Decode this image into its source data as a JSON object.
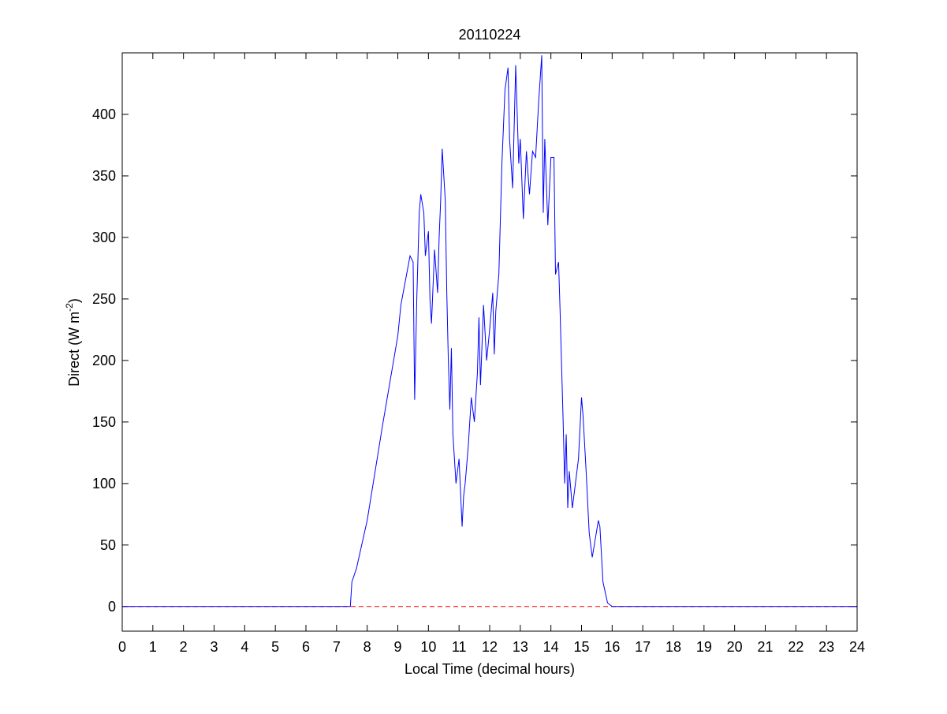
{
  "chart_data": {
    "type": "line",
    "title": "20110224",
    "xlabel": "Local Time (decimal hours)",
    "ylabel": [
      "Direct (W m",
      "-2",
      ")"
    ],
    "xlim": [
      0,
      24
    ],
    "xticks": [
      0,
      1,
      2,
      3,
      4,
      5,
      6,
      7,
      8,
      9,
      10,
      11,
      12,
      13,
      14,
      15,
      16,
      17,
      18,
      19,
      20,
      21,
      22,
      23,
      24
    ],
    "ylim": [
      -20,
      450
    ],
    "yticks": [
      0,
      50,
      100,
      150,
      200,
      250,
      300,
      350,
      400
    ],
    "reference_line": {
      "value": 0,
      "color": "#ff0000",
      "style": "dashed"
    },
    "x": [
      0,
      7.45,
      7.5,
      7.65,
      8.0,
      8.5,
      9.0,
      9.1,
      9.25,
      9.4,
      9.5,
      9.55,
      9.62,
      9.7,
      9.75,
      9.85,
      9.9,
      10.0,
      10.05,
      10.1,
      10.2,
      10.3,
      10.35,
      10.4,
      10.45,
      10.55,
      10.6,
      10.65,
      10.7,
      10.75,
      10.8,
      10.9,
      11.0,
      11.1,
      11.15,
      11.2,
      11.3,
      11.4,
      11.5,
      11.6,
      11.65,
      11.7,
      11.8,
      11.9,
      12.0,
      12.1,
      12.15,
      12.2,
      12.3,
      12.4,
      12.5,
      12.6,
      12.65,
      12.75,
      12.85,
      12.95,
      13.0,
      13.1,
      13.2,
      13.3,
      13.4,
      13.5,
      13.6,
      13.7,
      13.75,
      13.8,
      13.9,
      14.0,
      14.1,
      14.15,
      14.25,
      14.3,
      14.4,
      14.45,
      14.5,
      14.55,
      14.6,
      14.7,
      14.8,
      14.9,
      15.0,
      15.05,
      15.15,
      15.25,
      15.35,
      15.45,
      15.55,
      15.6,
      15.7,
      15.85,
      16.0,
      24
    ],
    "series": [
      {
        "color": "#0000ff",
        "values": [
          0,
          0,
          20,
          31,
          70,
          147,
          220,
          245,
          265,
          285,
          280,
          168,
          250,
          320,
          335,
          320,
          285,
          305,
          250,
          230,
          290,
          255,
          300,
          330,
          372,
          330,
          255,
          200,
          160,
          210,
          140,
          100,
          120,
          65,
          90,
          100,
          130,
          170,
          150,
          190,
          235,
          180,
          245,
          200,
          225,
          255,
          205,
          240,
          270,
          360,
          420,
          438,
          380,
          340,
          440,
          360,
          380,
          315,
          370,
          335,
          370,
          365,
          410,
          448,
          320,
          380,
          310,
          365,
          365,
          270,
          280,
          240,
          150,
          100,
          140,
          80,
          110,
          80,
          100,
          120,
          170,
          155,
          110,
          60,
          40,
          55,
          70,
          65,
          20,
          3,
          0,
          0
        ]
      }
    ]
  }
}
